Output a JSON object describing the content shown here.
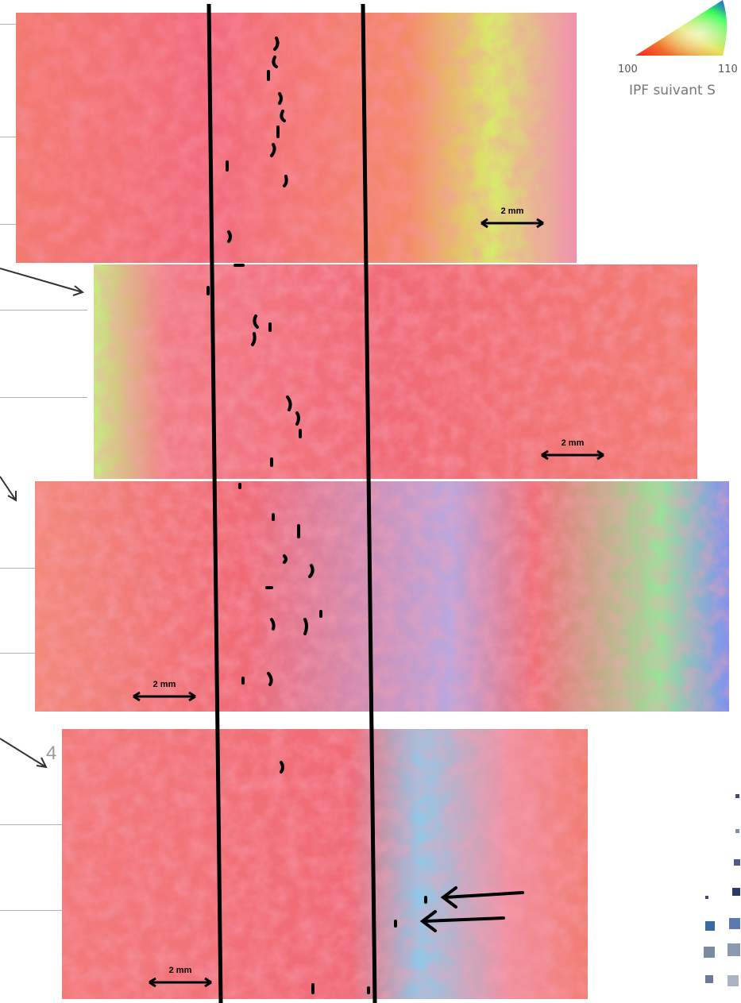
{
  "figure": {
    "legend": {
      "left_label": "100",
      "right_label": "110",
      "title": "IPF suivant S",
      "colors": [
        "#ff2020",
        "#20ff40",
        "#3050ff"
      ]
    },
    "scale_label": "2 mm",
    "background_digit": "4",
    "panels": [
      {
        "id": "panel-1",
        "base": "#f06e78",
        "tint_right": "#c8f070"
      },
      {
        "id": "panel-2",
        "base": "#f0707c",
        "tint_right": "#f2a06a"
      },
      {
        "id": "panel-3",
        "base": "#f06a74",
        "tint_right": "#8a9cf0"
      },
      {
        "id": "panel-4",
        "base": "#f06c76",
        "tint_right": "#7cd0f0"
      }
    ]
  }
}
